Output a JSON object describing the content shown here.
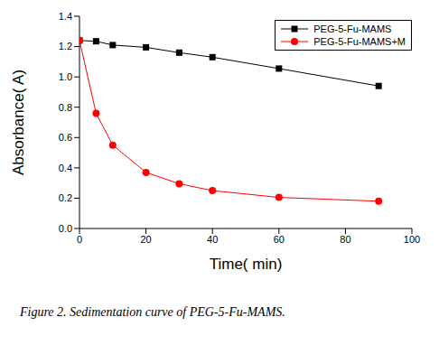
{
  "chart_data": {
    "type": "line",
    "caption": "Figure 2. Sedimentation curve of PEG-5-Fu-MAMS.",
    "x_label": "Time( min)",
    "y_label": "Absorbance( A)",
    "x": [
      0,
      5,
      10,
      20,
      30,
      40,
      60,
      90
    ],
    "series": [
      {
        "name": "PEG-5-Fu-MAMS",
        "color": "#000000",
        "marker": "square",
        "values": [
          1.24,
          1.235,
          1.21,
          1.195,
          1.16,
          1.13,
          1.055,
          0.94
        ]
      },
      {
        "name": "PEG-5-Fu-MAMS+M",
        "color": "#ff0000",
        "marker": "circle",
        "values": [
          1.24,
          0.76,
          0.55,
          0.37,
          0.295,
          0.25,
          0.205,
          0.18
        ]
      }
    ],
    "xlim": [
      0,
      100
    ],
    "xticks": [
      0,
      20,
      40,
      60,
      80,
      100
    ],
    "ylim": [
      0,
      1.4
    ],
    "yticks": [
      {
        "value": 0,
        "label": "0.0"
      },
      {
        "value": 0.2,
        "label": "0.2"
      },
      {
        "value": 0.4,
        "label": "0.4"
      },
      {
        "value": 0.6,
        "label": "0.6"
      },
      {
        "value": 0.8,
        "label": "0.8"
      },
      {
        "value": 1.0,
        "label": "1.0"
      },
      {
        "value": 1.2,
        "label": "1.2"
      },
      {
        "value": 1.4,
        "label": "1.4"
      }
    ],
    "grid": false,
    "legend": "upper right"
  }
}
